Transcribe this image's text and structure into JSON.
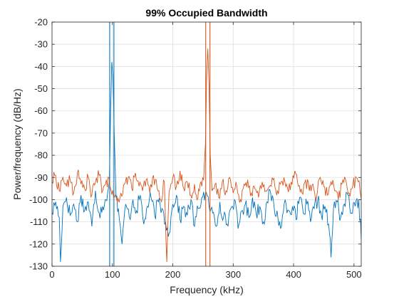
{
  "chart_data": {
    "type": "line",
    "title": "99% Occupied Bandwidth",
    "xlabel": "Frequency (kHz)",
    "ylabel": "Power/frequency (dB/Hz)",
    "xlim": [
      0,
      512
    ],
    "ylim": [
      -130,
      -20
    ],
    "xticks": [
      0,
      100,
      200,
      300,
      400,
      500
    ],
    "yticks": [
      -130,
      -120,
      -110,
      -100,
      -90,
      -80,
      -70,
      -60,
      -50,
      -40,
      -30,
      -20
    ],
    "grid": true,
    "colors": {
      "series1": "#0072BD",
      "series2": "#D95319",
      "grid": "#dfdfdf",
      "axis": "#262626"
    },
    "series": [
      {
        "peak_x": 99,
        "peak_y": -38,
        "noise_floor": -104,
        "noise_spread": 7,
        "bandwidth_lines_x": [
          95.5,
          102.5
        ],
        "x": [
          0,
          6,
          12,
          14,
          18,
          24,
          30,
          36,
          42,
          48,
          54,
          60,
          66,
          72,
          78,
          84,
          88,
          92,
          95,
          97,
          99,
          101,
          103,
          106,
          110,
          116,
          122,
          128,
          134,
          140,
          146,
          152,
          158,
          164,
          170,
          176,
          182,
          188,
          194,
          200,
          206,
          212,
          218,
          224,
          230,
          236,
          242,
          248,
          254,
          260,
          266,
          272,
          278,
          284,
          290,
          296,
          302,
          308,
          314,
          320,
          326,
          332,
          338,
          344,
          350,
          356,
          362,
          368,
          374,
          380,
          386,
          392,
          398,
          404,
          410,
          416,
          422,
          428,
          434,
          440,
          446,
          452,
          458,
          462,
          466,
          472,
          478,
          484,
          490,
          496,
          502,
          508,
          512
        ],
        "y": [
          -106,
          -101,
          -108,
          -128,
          -103,
          -99,
          -107,
          -102,
          -110,
          -98,
          -105,
          -101,
          -112,
          -96,
          -106,
          -103,
          -100,
          -97,
          -92,
          -60,
          -38,
          -45,
          -70,
          -99,
          -104,
          -120,
          -102,
          -108,
          -100,
          -105,
          -98,
          -111,
          -103,
          -99,
          -107,
          -101,
          -104,
          -110,
          -115,
          -102,
          -98,
          -109,
          -103,
          -107,
          -100,
          -112,
          -104,
          -99,
          -97,
          -103,
          -106,
          -112,
          -101,
          -108,
          -111,
          -104,
          -100,
          -113,
          -105,
          -102,
          -108,
          -99,
          -106,
          -103,
          -110,
          -101,
          -97,
          -104,
          -108,
          -112,
          -100,
          -105,
          -103,
          -109,
          -99,
          -106,
          -102,
          -110,
          -104,
          -100,
          -107,
          -103,
          -111,
          -126,
          -104,
          -101,
          -108,
          -102,
          -98,
          -106,
          -103,
          -100,
          -118
        ]
      },
      {
        "peak_x": 258,
        "peak_y": -32,
        "noise_floor": -94,
        "noise_spread": 6,
        "bandwidth_lines_x": [
          254.5,
          261.5
        ],
        "x": [
          0,
          6,
          12,
          18,
          24,
          30,
          36,
          42,
          48,
          54,
          60,
          66,
          72,
          78,
          84,
          90,
          96,
          102,
          108,
          114,
          120,
          126,
          132,
          138,
          144,
          150,
          156,
          162,
          168,
          174,
          180,
          186,
          190,
          194,
          200,
          206,
          212,
          218,
          224,
          230,
          236,
          240,
          244,
          248,
          251,
          254,
          256,
          258,
          260,
          262,
          265,
          270,
          276,
          282,
          288,
          294,
          300,
          306,
          312,
          318,
          324,
          330,
          336,
          342,
          348,
          354,
          360,
          366,
          372,
          378,
          384,
          390,
          396,
          402,
          408,
          414,
          420,
          426,
          432,
          438,
          444,
          450,
          456,
          462,
          468,
          474,
          480,
          486,
          492,
          498,
          504,
          510,
          512
        ],
        "y": [
          -92,
          -89,
          -96,
          -90,
          -94,
          -91,
          -97,
          -88,
          -93,
          -95,
          -90,
          -98,
          -92,
          -89,
          -96,
          -91,
          -94,
          -99,
          -101,
          -97,
          -93,
          -90,
          -95,
          -88,
          -94,
          -96,
          -91,
          -97,
          -89,
          -95,
          -100,
          -92,
          -128,
          -96,
          -90,
          -94,
          -87,
          -95,
          -92,
          -98,
          -93,
          -100,
          -96,
          -94,
          -91,
          -75,
          -45,
          -32,
          -48,
          -80,
          -96,
          -93,
          -99,
          -92,
          -96,
          -90,
          -97,
          -94,
          -100,
          -93,
          -91,
          -97,
          -95,
          -99,
          -92,
          -96,
          -94,
          -91,
          -98,
          -93,
          -90,
          -95,
          -92,
          -87,
          -94,
          -97,
          -91,
          -96,
          -93,
          -99,
          -90,
          -94,
          -98,
          -92,
          -96,
          -100,
          -93,
          -91,
          -97,
          -94,
          -90,
          -96,
          -100
        ]
      }
    ]
  }
}
